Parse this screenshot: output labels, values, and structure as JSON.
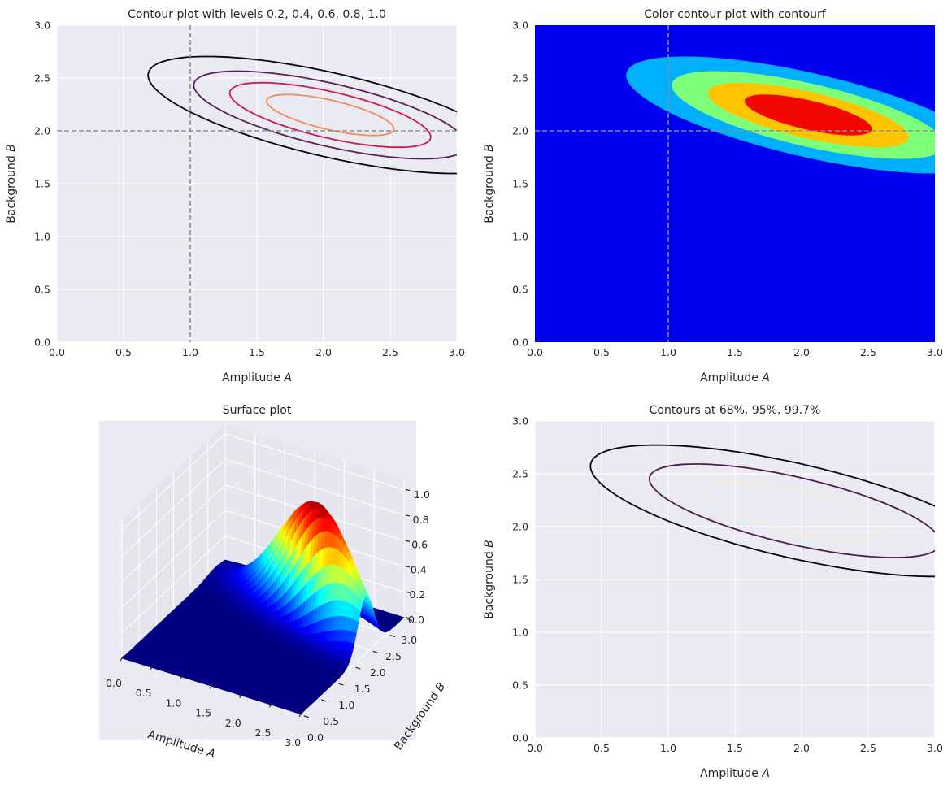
{
  "chart_data": [
    {
      "type": "contour",
      "title": "Contour plot with levels 0.2, 0.4, 0.6, 0.8, 1.0",
      "xlabel": "Amplitude",
      "xvar": "A",
      "ylabel": "Background",
      "yvar": "B",
      "xlim": [
        0,
        3
      ],
      "ylim": [
        0,
        3
      ],
      "xticks": [
        "0.0",
        "0.5",
        "1.0",
        "1.5",
        "2.0",
        "2.5",
        "3.0"
      ],
      "yticks": [
        "0.0",
        "0.5",
        "1.0",
        "1.5",
        "2.0",
        "2.5",
        "3.0"
      ],
      "levels": [
        0.2,
        0.4,
        0.6,
        0.8,
        1.0
      ],
      "colors": [
        "#03051a",
        "#5c1e57",
        "#cb1b4f",
        "#f6895d",
        "#faebdd"
      ],
      "reference_lines": {
        "A": 1.0,
        "B": 2.0,
        "color": "#8c8c8c",
        "style": "dashed"
      },
      "grid": true
    },
    {
      "type": "contourf",
      "title": "Color contour plot with contourf",
      "xlabel": "Amplitude",
      "xvar": "A",
      "ylabel": "Background",
      "yvar": "B",
      "xlim": [
        0,
        3
      ],
      "ylim": [
        0,
        3
      ],
      "xticks": [
        "0.0",
        "0.5",
        "1.0",
        "1.5",
        "2.0",
        "2.5",
        "3.0"
      ],
      "yticks": [
        "0.0",
        "0.5",
        "1.0",
        "1.5",
        "2.0",
        "2.5",
        "3.0"
      ],
      "colormap": "jet",
      "levels": [
        0.0,
        0.2,
        0.4,
        0.6,
        0.8,
        1.0
      ],
      "band_colors": [
        "#0000f1",
        "#00b0ff",
        "#7dff7a",
        "#ffc400",
        "#f10800"
      ],
      "reference_lines": {
        "A": 1.0,
        "B": 2.0,
        "color": "#8c8c8c",
        "style": "dashed"
      },
      "grid": false
    },
    {
      "type": "surface",
      "title": "Surface plot",
      "xlabel": "Amplitude",
      "xvar": "A",
      "ylabel": "Background",
      "yvar": "B",
      "xlim": [
        0,
        3
      ],
      "ylim": [
        0,
        3
      ],
      "zlim": [
        0,
        1
      ],
      "xticks": [
        "0.0",
        "0.5",
        "1.0",
        "1.5",
        "2.0",
        "2.5",
        "3.0"
      ],
      "yticks": [
        "0.0",
        "0.5",
        "1.0",
        "1.5",
        "2.0",
        "2.5",
        "3.0"
      ],
      "zticks": [
        "0.0",
        "0.2",
        "0.4",
        "0.6",
        "0.8",
        "1.0"
      ],
      "colormap": "jet",
      "peak": {
        "A": 2.05,
        "B": 2.15,
        "z": 0.97
      }
    },
    {
      "type": "contour",
      "title": "Contours at 68%, 95%, 99.7%",
      "xlabel": "Amplitude",
      "xvar": "A",
      "ylabel": "Background",
      "yvar": "B",
      "xlim": [
        0,
        3
      ],
      "ylim": [
        0,
        3
      ],
      "xticks": [
        "0.0",
        "0.5",
        "1.0",
        "1.5",
        "2.0",
        "2.5",
        "3.0"
      ],
      "yticks": [
        "0.0",
        "0.5",
        "1.0",
        "1.5",
        "2.0",
        "2.5",
        "3.0"
      ],
      "levels": [
        "68%",
        "95%",
        "99.7%"
      ],
      "colors": [
        "#faebdd",
        "#4f1c4f",
        "#03051a"
      ],
      "grid": true
    }
  ]
}
